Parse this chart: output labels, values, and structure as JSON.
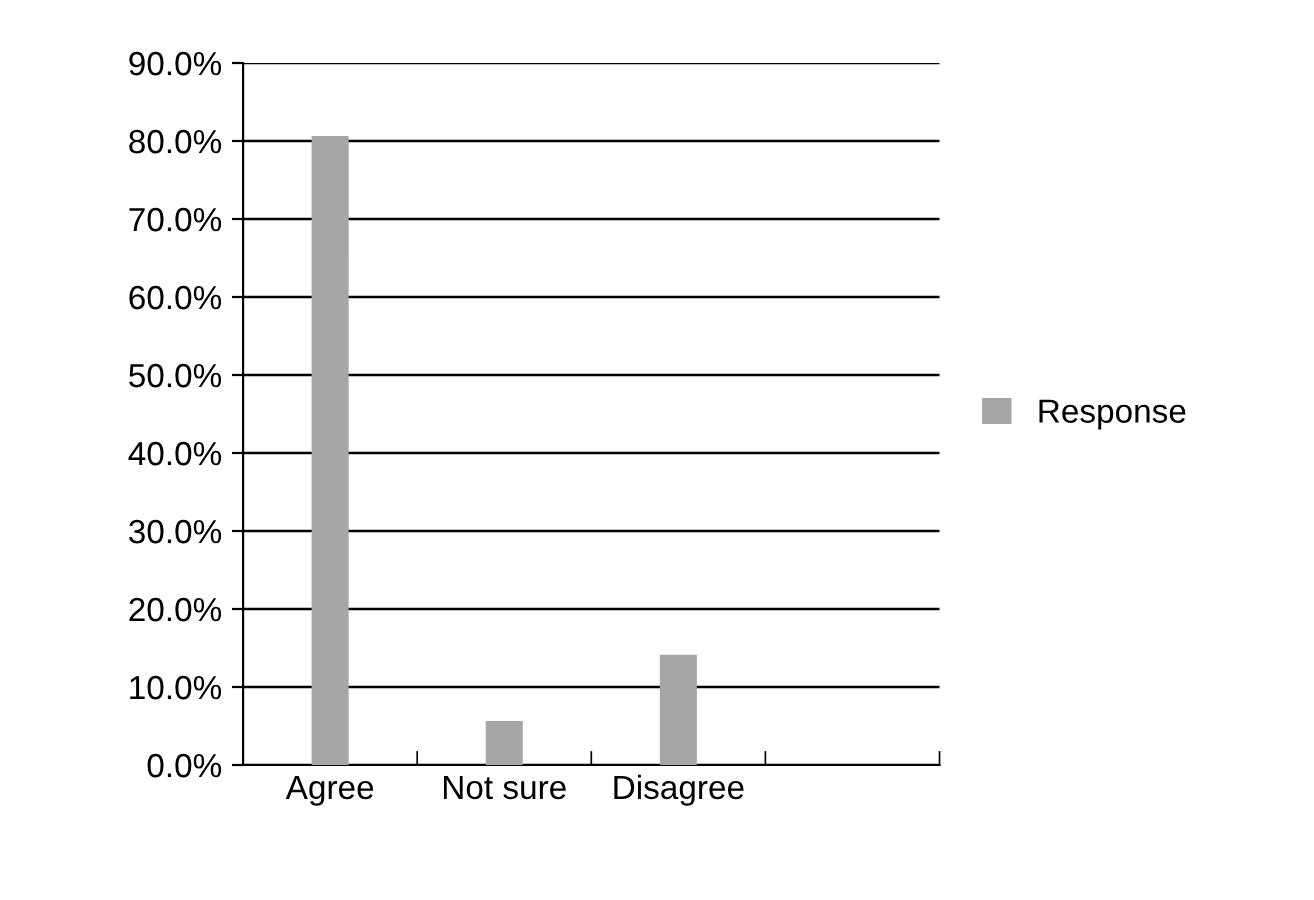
{
  "chart_data": {
    "type": "bar",
    "categories": [
      "Agree",
      "Not sure",
      "Disagree",
      null
    ],
    "series": [
      {
        "name": "Response",
        "color": "#a6a6a6",
        "values": [
          80.5,
          5.5,
          14.0,
          null
        ]
      }
    ],
    "ylim": [
      0,
      90
    ],
    "yticks": [
      {
        "value": 0,
        "label": "0.0%"
      },
      {
        "value": 10,
        "label": "10.0%"
      },
      {
        "value": 20,
        "label": "20.0%"
      },
      {
        "value": 30,
        "label": "30.0%"
      },
      {
        "value": 40,
        "label": "40.0%"
      },
      {
        "value": 50,
        "label": "50.0%"
      },
      {
        "value": 60,
        "label": "60.0%"
      },
      {
        "value": 70,
        "label": "70.0%"
      },
      {
        "value": 80,
        "label": "80.0%"
      },
      {
        "value": 90,
        "label": "90.0%"
      }
    ],
    "grid": "y",
    "legend": "right"
  }
}
